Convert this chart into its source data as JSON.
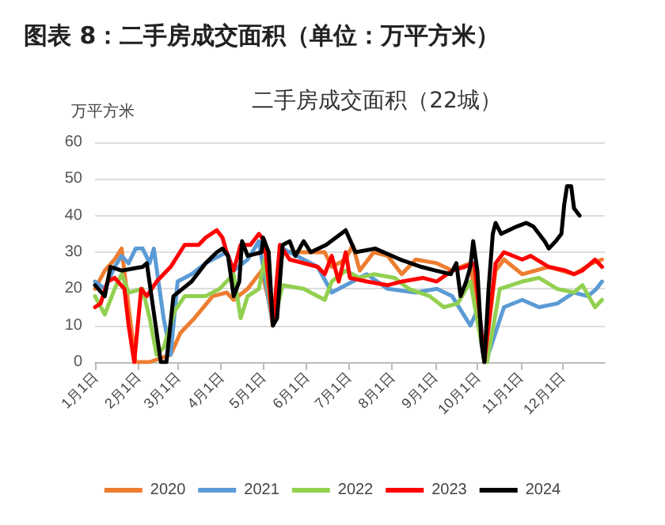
{
  "chart_data": {
    "type": "line",
    "title": "图表 8：二手房成交面积（单位：万平方米）",
    "subtitle": "二手房成交面积（22城）",
    "ylabel": "万平方米",
    "xlim": [
      "--01-01",
      "--12-31"
    ],
    "xticks": [
      {
        "value": "--01-01",
        "label": "1月1日"
      },
      {
        "value": "--02-01",
        "label": "2月1日"
      },
      {
        "value": "--03-01",
        "label": "3月1日"
      },
      {
        "value": "--04-01",
        "label": "4月1日"
      },
      {
        "value": "--05-01",
        "label": "5月1日"
      },
      {
        "value": "--06-01",
        "label": "6月1日"
      },
      {
        "value": "--07-01",
        "label": "7月1日"
      },
      {
        "value": "--08-01",
        "label": "8月1日"
      },
      {
        "value": "--09-01",
        "label": "9月1日"
      },
      {
        "value": "--10-01",
        "label": "10月1日"
      },
      {
        "value": "--11-01",
        "label": "11月1日"
      },
      {
        "value": "--12-01",
        "label": "12月1日"
      }
    ],
    "ylim": [
      0,
      60
    ],
    "yticks": [
      0,
      10,
      20,
      30,
      40,
      50,
      60
    ],
    "grid": "y",
    "legend": "bottom",
    "marker": "none",
    "line_style": "solid",
    "series": [
      {
        "name": "2020",
        "color": "#ed7d31",
        "x": [
          "--01-01",
          "--01-08",
          "--01-15",
          "--01-20",
          "--01-25",
          "--01-30",
          "--02-09",
          "--02-24",
          "--03-03",
          "--03-13",
          "--03-26",
          "--04-05",
          "--04-10",
          "--04-20",
          "--04-30",
          "--05-08",
          "--05-15",
          "--05-30",
          "--06-14",
          "--06-19",
          "--06-29",
          "--07-04",
          "--07-09",
          "--07-19",
          "--07-29",
          "--08-08",
          "--08-18",
          "--09-02",
          "--09-13",
          "--09-26",
          "--10-06",
          "--10-14",
          "--10-20",
          "--11-02",
          "--11-21",
          "--12-09",
          "--12-22",
          "--12-29"
        ],
        "values": [
          20,
          25,
          28,
          31,
          15,
          0,
          0,
          2,
          8,
          12,
          18,
          19,
          17,
          20,
          25,
          12,
          30,
          30,
          30,
          26,
          28,
          32,
          25,
          30,
          29,
          24,
          28,
          27,
          25,
          27,
          0,
          25,
          28,
          24,
          26,
          24,
          27,
          28
        ]
      },
      {
        "name": "2021",
        "color": "#5b9bd5",
        "x": [
          "--01-01",
          "--01-08",
          "--01-15",
          "--01-20",
          "--01-25",
          "--01-30",
          "--02-04",
          "--02-09",
          "--02-12",
          "--02-19",
          "--02-24",
          "--03-01",
          "--03-11",
          "--03-21",
          "--03-31",
          "--04-05",
          "--04-10",
          "--04-20",
          "--04-28",
          "--05-08",
          "--05-15",
          "--05-30",
          "--06-09",
          "--06-19",
          "--07-04",
          "--07-14",
          "--07-29",
          "--08-18",
          "--09-02",
          "--09-13",
          "--09-26",
          "--10-02",
          "--10-07",
          "--10-20",
          "--11-02",
          "--11-14",
          "--11-27",
          "--12-09",
          "--12-19",
          "--12-25",
          "--12-29"
        ],
        "values": [
          22,
          20,
          26,
          29,
          27,
          31,
          31,
          27,
          31,
          12,
          2,
          22,
          24,
          27,
          29,
          30,
          25,
          28,
          33,
          10,
          31,
          28,
          26,
          19,
          22,
          24,
          20,
          19,
          20,
          18,
          10,
          15,
          0,
          15,
          17,
          15,
          16,
          19,
          18,
          20,
          22
        ]
      },
      {
        "name": "2022",
        "color": "#92d050",
        "x": [
          "--01-01",
          "--01-08",
          "--01-15",
          "--01-20",
          "--01-25",
          "--02-04",
          "--02-09",
          "--02-14",
          "--02-19",
          "--02-27",
          "--03-06",
          "--03-21",
          "--03-31",
          "--04-10",
          "--04-15",
          "--04-20",
          "--04-28",
          "--05-02",
          "--05-08",
          "--05-15",
          "--05-30",
          "--06-14",
          "--06-19",
          "--06-29",
          "--07-09",
          "--07-19",
          "--08-03",
          "--08-13",
          "--08-28",
          "--09-07",
          "--09-17",
          "--09-26",
          "--10-04",
          "--10-08",
          "--10-17",
          "--11-02",
          "--11-14",
          "--11-27",
          "--12-09",
          "--12-15",
          "--12-24",
          "--12-29"
        ],
        "values": [
          18,
          13,
          20,
          24,
          19,
          20,
          12,
          2,
          4,
          14,
          18,
          18,
          20,
          24,
          12,
          18,
          20,
          28,
          10,
          21,
          20,
          17,
          22,
          25,
          23,
          24,
          23,
          20,
          18,
          15,
          16,
          22,
          5,
          0,
          20,
          22,
          23,
          20,
          19,
          21,
          15,
          17
        ]
      },
      {
        "name": "2023",
        "color": "#ff0000",
        "x": [
          "--01-01",
          "--01-05",
          "--01-10",
          "--01-15",
          "--01-22",
          "--01-25",
          "--01-29",
          "--02-03",
          "--02-07",
          "--02-14",
          "--02-24",
          "--03-06",
          "--03-16",
          "--03-21",
          "--03-29",
          "--04-02",
          "--04-05",
          "--04-10",
          "--04-15",
          "--04-22",
          "--04-28",
          "--05-02",
          "--05-08",
          "--05-13",
          "--05-20",
          "--05-30",
          "--06-09",
          "--06-14",
          "--06-19",
          "--06-24",
          "--06-29",
          "--07-02",
          "--07-14",
          "--07-29",
          "--08-08",
          "--08-23",
          "--09-02",
          "--09-13",
          "--09-22",
          "--09-29",
          "--10-06",
          "--10-14",
          "--10-20",
          "--11-02",
          "--11-08",
          "--11-21",
          "--12-03",
          "--12-09",
          "--12-15",
          "--12-24",
          "--12-29"
        ],
        "values": [
          15,
          16,
          22,
          23,
          20,
          10,
          0,
          20,
          18,
          22,
          26,
          32,
          32,
          34,
          36,
          34,
          30,
          25,
          32,
          32,
          35,
          33,
          10,
          32,
          28,
          27,
          26,
          24,
          29,
          22,
          30,
          23,
          22,
          21,
          22,
          23,
          22,
          25,
          26,
          27,
          0,
          27,
          30,
          28,
          29,
          26,
          25,
          24,
          25,
          28,
          26
        ]
      },
      {
        "name": "2024",
        "color": "#000000",
        "x": [
          "--01-01",
          "--01-08",
          "--01-12",
          "--01-20",
          "--02-04",
          "--02-07",
          "--02-17",
          "--02-21",
          "--02-26",
          "--03-11",
          "--03-21",
          "--03-29",
          "--04-02",
          "--04-06",
          "--04-10",
          "--04-14",
          "--04-16",
          "--04-20",
          "--04-30",
          "--05-01",
          "--05-05",
          "--05-08",
          "--05-11",
          "--05-15",
          "--05-20",
          "--05-24",
          "--05-30",
          "--06-04",
          "--06-15",
          "--06-29",
          "--07-06",
          "--07-20",
          "--08-07",
          "--08-22",
          "--09-01",
          "--09-12",
          "--09-16",
          "--09-19",
          "--09-23",
          "--09-26",
          "--09-28",
          "--10-01",
          "--10-04",
          "--10-06",
          "--10-09",
          "--10-12",
          "--10-14",
          "--10-18",
          "--10-29",
          "--11-05",
          "--11-10",
          "--11-18",
          "--11-21",
          "--11-26",
          "--11-30",
          "--12-02",
          "--12-04",
          "--12-07",
          "--12-09",
          "--12-13"
        ],
        "values": [
          21,
          18,
          26,
          25,
          26,
          27,
          0,
          0,
          18,
          22,
          27,
          30,
          31,
          29,
          18,
          22,
          33,
          29,
          30,
          34,
          30,
          10,
          12,
          32,
          33,
          29,
          33,
          30,
          32,
          36,
          30,
          31,
          28,
          26,
          25,
          24,
          27,
          18,
          22,
          26,
          33,
          25,
          5,
          0,
          20,
          35,
          38,
          35,
          37,
          38,
          37,
          33,
          31,
          33,
          35,
          43,
          48,
          48,
          42,
          40
        ]
      }
    ]
  }
}
